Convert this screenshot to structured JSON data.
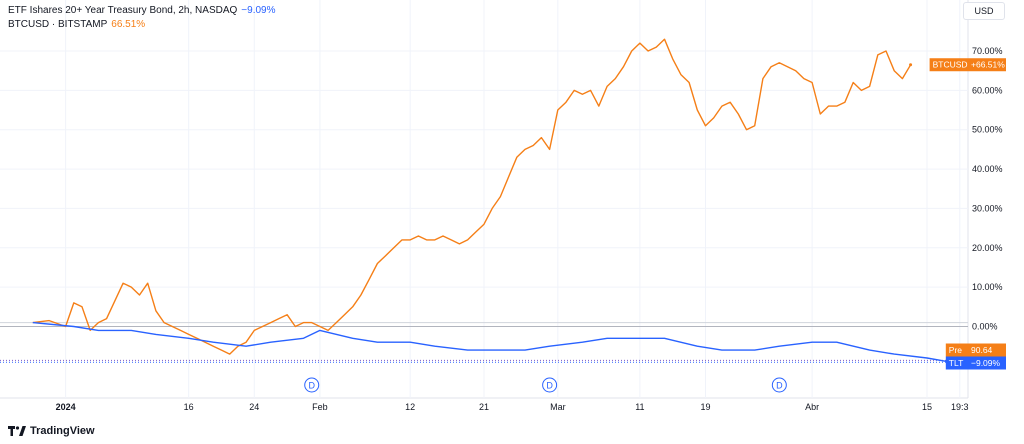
{
  "legend": {
    "main_series": "ETF Ishares 20+ Year Treasury Bond, 2h, NASDAQ",
    "main_change": "−9.09%",
    "compare_series": "BTCUSD · BITSTAMP",
    "compare_change": "66.51%"
  },
  "toolbar": {
    "currency": "USD"
  },
  "brand": {
    "name": "TradingView"
  },
  "colors": {
    "btc": "#f57f17",
    "tlt": "#2962ff",
    "grid": "#f0f3fa",
    "axis_text": "#131722"
  },
  "price_tags": [
    {
      "label": "BTCUSD",
      "value": "+66.51%",
      "color": "#f57f17"
    },
    {
      "label": "Pre",
      "value": "90.64",
      "color": "#f57f17"
    },
    {
      "label": "TLT",
      "value": "−9.09%",
      "color": "#2962ff"
    }
  ],
  "event_markers": [
    {
      "label": "D",
      "date": "2024-01-31"
    },
    {
      "label": "D",
      "date": "2024-02-29"
    },
    {
      "label": "D",
      "date": "2024-03-28"
    }
  ],
  "chart_data": {
    "type": "line",
    "ylabel": "",
    "ylim": [
      -10,
      75
    ],
    "y_unit": "percent",
    "y_ticks": [
      "70.00%",
      "60.00%",
      "50.00%",
      "40.00%",
      "30.00%",
      "20.00%",
      "10.00%",
      "0.00%"
    ],
    "y_tick_values": [
      70,
      60,
      50,
      40,
      30,
      20,
      10,
      0
    ],
    "x_ticks": [
      "2024",
      "16",
      "24",
      "Feb",
      "12",
      "21",
      "Mar",
      "11",
      "19",
      "Abr",
      "15",
      "19:3"
    ],
    "x_tick_dates": [
      "2024-01-01",
      "2024-01-16",
      "2024-01-24",
      "2024-02-01",
      "2024-02-12",
      "2024-02-21",
      "2024-03-01",
      "2024-03-11",
      "2024-03-19",
      "2024-04-01",
      "2024-04-15",
      "2024-04-19"
    ],
    "series": [
      {
        "name": "BTCUSD",
        "color": "#f57f17",
        "x": [
          "2023-12-28",
          "2023-12-30",
          "2024-01-01",
          "2024-01-02",
          "2024-01-03",
          "2024-01-04",
          "2024-01-05",
          "2024-01-06",
          "2024-01-08",
          "2024-01-09",
          "2024-01-10",
          "2024-01-11",
          "2024-01-12",
          "2024-01-13",
          "2024-01-14",
          "2024-01-15",
          "2024-01-16",
          "2024-01-17",
          "2024-01-18",
          "2024-01-19",
          "2024-01-20",
          "2024-01-21",
          "2024-01-22",
          "2024-01-23",
          "2024-01-24",
          "2024-01-25",
          "2024-01-26",
          "2024-01-27",
          "2024-01-28",
          "2024-01-29",
          "2024-01-30",
          "2024-01-31",
          "2024-02-01",
          "2024-02-02",
          "2024-02-03",
          "2024-02-04",
          "2024-02-05",
          "2024-02-06",
          "2024-02-07",
          "2024-02-08",
          "2024-02-09",
          "2024-02-10",
          "2024-02-11",
          "2024-02-12",
          "2024-02-13",
          "2024-02-14",
          "2024-02-15",
          "2024-02-16",
          "2024-02-17",
          "2024-02-18",
          "2024-02-19",
          "2024-02-20",
          "2024-02-21",
          "2024-02-22",
          "2024-02-23",
          "2024-02-24",
          "2024-02-25",
          "2024-02-26",
          "2024-02-27",
          "2024-02-28",
          "2024-02-29",
          "2024-03-01",
          "2024-03-02",
          "2024-03-03",
          "2024-03-04",
          "2024-03-05",
          "2024-03-06",
          "2024-03-07",
          "2024-03-08",
          "2024-03-09",
          "2024-03-10",
          "2024-03-11",
          "2024-03-12",
          "2024-03-13",
          "2024-03-14",
          "2024-03-15",
          "2024-03-16",
          "2024-03-17",
          "2024-03-18",
          "2024-03-19",
          "2024-03-20",
          "2024-03-21",
          "2024-03-22",
          "2024-03-23",
          "2024-03-24",
          "2024-03-25",
          "2024-03-26",
          "2024-03-27",
          "2024-03-28",
          "2024-03-29",
          "2024-03-30",
          "2024-03-31",
          "2024-04-01",
          "2024-04-02",
          "2024-04-03",
          "2024-04-04",
          "2024-04-05",
          "2024-04-06",
          "2024-04-07",
          "2024-04-08",
          "2024-04-09",
          "2024-04-10",
          "2024-04-11",
          "2024-04-12",
          "2024-04-13"
        ],
        "values": [
          1,
          1.5,
          0,
          6,
          5,
          -1,
          1,
          2,
          11,
          10,
          8,
          11,
          4,
          1,
          0,
          -1,
          -2,
          -3,
          -4,
          -5,
          -6,
          -7,
          -5,
          -4,
          -1,
          0,
          1,
          2,
          3,
          0,
          1,
          1,
          0,
          -1,
          1,
          3,
          5,
          8,
          12,
          16,
          18,
          20,
          22,
          22,
          23,
          22,
          22,
          23,
          22,
          21,
          22,
          24,
          26,
          30,
          33,
          38,
          43,
          45,
          46,
          48,
          45,
          55,
          57,
          60,
          59,
          60,
          56,
          61,
          63,
          66,
          70,
          72,
          70,
          71,
          73,
          68,
          64,
          62,
          55,
          51,
          53,
          56,
          57,
          54,
          50,
          51,
          63,
          66,
          67,
          66,
          65,
          63,
          62,
          54,
          56,
          56,
          57,
          62,
          60,
          61,
          69,
          70,
          65,
          63,
          66.5
        ]
      },
      {
        "name": "TLT",
        "color": "#2962ff",
        "x": [
          "2023-12-28",
          "2024-01-02",
          "2024-01-05",
          "2024-01-09",
          "2024-01-12",
          "2024-01-16",
          "2024-01-19",
          "2024-01-23",
          "2024-01-26",
          "2024-01-30",
          "2024-02-01",
          "2024-02-05",
          "2024-02-08",
          "2024-02-12",
          "2024-02-15",
          "2024-02-19",
          "2024-02-22",
          "2024-02-26",
          "2024-02-29",
          "2024-03-04",
          "2024-03-07",
          "2024-03-11",
          "2024-03-14",
          "2024-03-18",
          "2024-03-21",
          "2024-03-25",
          "2024-03-28",
          "2024-04-01",
          "2024-04-04",
          "2024-04-08",
          "2024-04-11",
          "2024-04-15",
          "2024-04-18"
        ],
        "values": [
          1,
          0,
          -1,
          -1,
          -2,
          -3,
          -4,
          -5,
          -4,
          -3,
          -1,
          -3,
          -4,
          -4,
          -5,
          -6,
          -6,
          -6,
          -5,
          -4,
          -3,
          -3,
          -3,
          -5,
          -6,
          -6,
          -5,
          -4,
          -4,
          -6,
          -7,
          -8,
          -9.09
        ]
      }
    ],
    "reference_lines": [
      {
        "name": "Pre",
        "value": -8.6,
        "style": "dotted"
      }
    ]
  }
}
